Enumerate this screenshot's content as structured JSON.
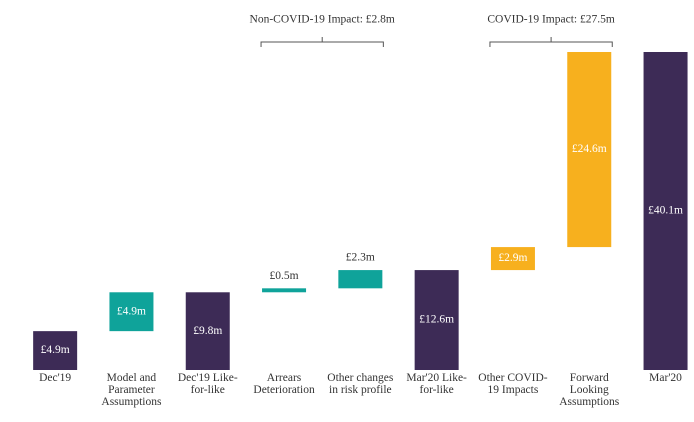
{
  "chart_data": {
    "type": "waterfall",
    "categories": [
      "Dec'19",
      "Model and Parameter Assumptions",
      "Dec'19 Like-for-like",
      "Arrears Deterioration",
      "Other changes in risk profile",
      "Mar'20 Like-for-like",
      "Other COVID-19 Impacts",
      "Forward Looking Assumptions",
      "Mar'20"
    ],
    "values": [
      4.9,
      4.9,
      9.8,
      0.5,
      2.3,
      12.6,
      2.9,
      24.6,
      40.1
    ],
    "value_labels": [
      "£4.9m",
      "£4.9m",
      "£9.8m",
      "£0.5m",
      "£2.3m",
      "£12.6m",
      "£2.9m",
      "£24.6m",
      "£40.1m"
    ],
    "measure": [
      "total",
      "relative",
      "total",
      "relative",
      "relative",
      "total",
      "relative",
      "relative",
      "total"
    ],
    "colors": [
      "#3d2b56",
      "#0fa39a",
      "#3d2b56",
      "#0fa39a",
      "#0fa39a",
      "#3d2b56",
      "#f7b01e",
      "#f7b01e",
      "#3d2b56"
    ],
    "annotations": [
      {
        "text": "Non-COVID-19 Impact: £2.8m",
        "categories": [
          3,
          4
        ]
      },
      {
        "text": "COVID-19 Impact: £27.5m",
        "categories": [
          6,
          7
        ]
      }
    ]
  }
}
